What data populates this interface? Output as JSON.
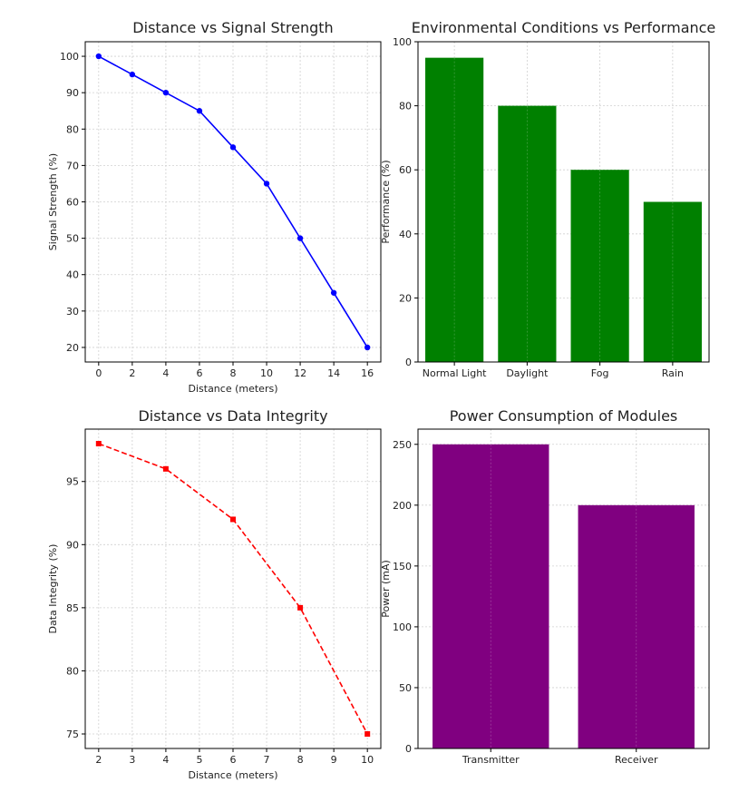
{
  "chart_data": [
    {
      "type": "line",
      "title": "Distance vs Signal Strength",
      "xlabel": "Distance (meters)",
      "ylabel": "Signal Strength (%)",
      "x": [
        0,
        2,
        4,
        6,
        8,
        10,
        12,
        14,
        16
      ],
      "series": [
        {
          "values": [
            100,
            95,
            90,
            85,
            75,
            65,
            50,
            35,
            20
          ],
          "color": "#0000ff",
          "line_style": "solid",
          "marker": "circle"
        }
      ],
      "xticks": [
        "0",
        "2",
        "4",
        "6",
        "8",
        "10",
        "12",
        "14",
        "16"
      ],
      "yticks": [
        "20",
        "30",
        "40",
        "50",
        "60",
        "70",
        "80",
        "90",
        "100"
      ],
      "xlim": [
        -0.8,
        16.8
      ],
      "ylim": [
        16,
        104
      ],
      "grid": true
    },
    {
      "type": "bar",
      "title": "Environmental Conditions vs Performance",
      "xlabel": "",
      "ylabel": "Performance (%)",
      "categories": [
        "Normal Light",
        "Daylight",
        "Fog",
        "Rain"
      ],
      "values": [
        95,
        80,
        60,
        50
      ],
      "color": "#008000",
      "yticks": [
        "0",
        "20",
        "40",
        "60",
        "80",
        "100"
      ],
      "ylim": [
        0,
        100
      ],
      "grid": true
    },
    {
      "type": "line",
      "title": "Distance vs Data Integrity",
      "xlabel": "Distance (meters)",
      "ylabel": "Data Integrity (%)",
      "x": [
        2,
        4,
        6,
        8,
        10
      ],
      "series": [
        {
          "values": [
            98,
            96,
            92,
            85,
            75
          ],
          "color": "#ff0000",
          "line_style": "dashed",
          "marker": "square"
        }
      ],
      "xticks": [
        "2",
        "3",
        "4",
        "5",
        "6",
        "7",
        "8",
        "9",
        "10"
      ],
      "yticks": [
        "75",
        "80",
        "85",
        "90",
        "95"
      ],
      "xlim": [
        1.6,
        10.4
      ],
      "ylim": [
        73.85,
        99.15
      ],
      "grid": true
    },
    {
      "type": "bar",
      "title": "Power Consumption of Modules",
      "xlabel": "",
      "ylabel": "Power (mA)",
      "categories": [
        "Transmitter",
        "Receiver"
      ],
      "values": [
        250,
        200
      ],
      "color": "#800080",
      "yticks": [
        "0",
        "50",
        "100",
        "150",
        "200",
        "250"
      ],
      "ylim": [
        0,
        262.5
      ],
      "grid": true
    }
  ]
}
